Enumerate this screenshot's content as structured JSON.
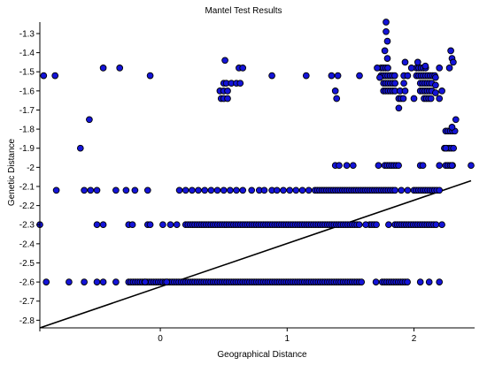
{
  "chart_data": {
    "type": "scatter",
    "title": "Mantel Test Results",
    "xlabel": "Geographical Distance",
    "ylabel": "Genetic Distance",
    "xlim": [
      -0.95,
      2.45
    ],
    "ylim": [
      -2.84,
      -1.24
    ],
    "x_ticks": [
      0,
      1,
      2
    ],
    "y_ticks": [
      -1.3,
      -1.4,
      -1.5,
      -1.6,
      -1.7,
      -1.8,
      -1.9,
      -2,
      -2.1,
      -2.2,
      -2.3,
      -2.4,
      -2.5,
      -2.6,
      -2.7,
      -2.8
    ],
    "grid": false,
    "point_color": "#1414d8",
    "regression_line": {
      "x": [
        -0.95,
        2.45
      ],
      "y": [
        -2.84,
        -2.07
      ]
    },
    "bands": [
      {
        "y": -2.6,
        "x_ranges": [
          [
            -0.25,
            1.6
          ],
          [
            1.75,
            1.95
          ]
        ],
        "points": [
          -0.9,
          -0.72,
          -0.6,
          -0.5,
          -0.45,
          -0.35,
          -0.12,
          0.05,
          1.7,
          2.05,
          2.12,
          2.2
        ]
      },
      {
        "y": -2.3,
        "x_ranges": [
          [
            0.2,
            1.58
          ],
          [
            1.65,
            1.72
          ],
          [
            1.85,
            2.18
          ]
        ],
        "points": [
          -0.95,
          -0.5,
          -0.45,
          -0.25,
          -0.22,
          -0.1,
          -0.08,
          0.02,
          0.08,
          0.13,
          1.62,
          1.8,
          2.22
        ]
      },
      {
        "y": -2.12,
        "x_ranges": [
          [
            1.22,
            1.85
          ],
          [
            2.0,
            2.18
          ]
        ],
        "points": [
          -0.82,
          -0.6,
          -0.55,
          -0.5,
          -0.35,
          -0.27,
          -0.2,
          -0.1,
          0.15,
          0.2,
          0.25,
          0.3,
          0.35,
          0.4,
          0.45,
          0.5,
          0.55,
          0.6,
          0.65,
          0.72,
          0.78,
          0.82,
          0.88,
          0.92,
          0.97,
          1.02,
          1.07,
          1.12,
          1.17,
          1.9,
          1.95,
          2.2
        ]
      },
      {
        "y": -1.99,
        "x_ranges": [
          [
            1.77,
            1.88
          ],
          [
            2.25,
            2.32
          ]
        ],
        "points": [
          1.38,
          1.41,
          1.47,
          1.52,
          1.72,
          2.05,
          2.07,
          2.2,
          2.3,
          2.45
        ]
      },
      {
        "y": -1.52,
        "x_ranges": [
          [
            1.74,
            1.85
          ],
          [
            2.02,
            2.18
          ]
        ],
        "points": [
          -0.92,
          -0.83,
          -0.08,
          0.88,
          1.15,
          1.35,
          1.4,
          1.57,
          1.92,
          1.95
        ]
      },
      {
        "y": -1.48,
        "x_ranges": [
          [
            1.74,
            1.8
          ],
          [
            2.02,
            2.1
          ]
        ],
        "points": [
          -0.45,
          -0.32,
          0.62,
          0.65,
          1.98,
          2.2,
          2.28
        ]
      },
      {
        "y": -1.56,
        "x_ranges": [
          [
            1.76,
            1.86
          ],
          [
            2.05,
            2.15
          ]
        ],
        "points": [
          0.5,
          0.52,
          0.56,
          0.6,
          0.63,
          1.85,
          1.92
        ]
      },
      {
        "y": -1.6,
        "x_ranges": [
          [
            1.76,
            1.86
          ],
          [
            2.05,
            2.15
          ]
        ],
        "points": [
          0.47,
          0.5,
          0.53,
          1.38,
          1.89,
          1.93,
          2.22
        ]
      },
      {
        "y": -1.64,
        "x_ranges": [
          [
            1.88,
            1.92
          ],
          [
            2.08,
            2.14
          ]
        ],
        "points": [
          0.48,
          0.5,
          0.53,
          1.39,
          2.0,
          2.2
        ]
      },
      {
        "y": -1.9,
        "x_ranges": [
          [
            2.24,
            2.32
          ]
        ],
        "points": [
          -0.63,
          2.25
        ]
      },
      {
        "y": -1.81,
        "x_ranges": [
          [
            2.25,
            2.33
          ]
        ],
        "points": [
          2.46
        ]
      }
    ],
    "extra_points": [
      [
        -0.56,
        -1.75
      ],
      [
        0.51,
        -1.44
      ],
      [
        1.78,
        -1.24
      ],
      [
        1.78,
        -1.29
      ],
      [
        1.79,
        -1.34
      ],
      [
        1.77,
        -1.39
      ],
      [
        1.79,
        -1.43
      ],
      [
        2.29,
        -1.39
      ],
      [
        2.3,
        -1.43
      ],
      [
        2.31,
        -1.45
      ],
      [
        2.33,
        -1.75
      ],
      [
        2.3,
        -1.79
      ],
      [
        2.03,
        -1.45
      ],
      [
        1.93,
        -1.45
      ],
      [
        2.09,
        -1.47
      ],
      [
        2.17,
        -1.53
      ],
      [
        2.17,
        -1.57
      ],
      [
        2.17,
        -1.61
      ],
      [
        1.71,
        -1.48
      ],
      [
        1.88,
        -1.69
      ],
      [
        1.73,
        -1.53
      ]
    ]
  }
}
